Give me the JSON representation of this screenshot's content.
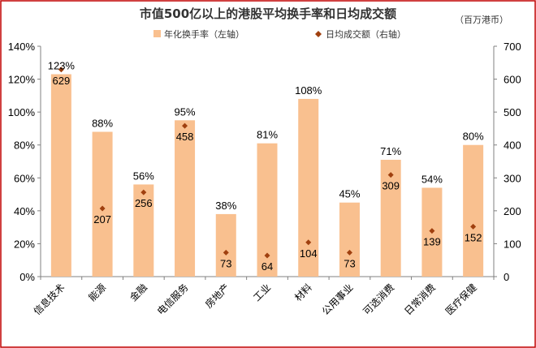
{
  "header": {
    "title": "市值500亿以上的港股平均换手率和日均成交额",
    "unit": "（百万港币）"
  },
  "legend": {
    "bar_label": "年化换手率（左轴）",
    "dot_label": "日均成交额（右轴）"
  },
  "colors": {
    "bar": "#F9C08F",
    "dot": "#A0400F",
    "frame": "#C00000",
    "axis": "#808080"
  },
  "chart_data": {
    "type": "bar",
    "title": "市值500亿以上的港股平均换手率和日均成交额",
    "categories": [
      "信息技术",
      "能源",
      "金融",
      "电信服务",
      "房地产",
      "工业",
      "材料",
      "公用事业",
      "可选消费",
      "日常消费",
      "医疗保健"
    ],
    "series": [
      {
        "name": "年化换手率（左轴）",
        "axis": "left",
        "type": "bar",
        "values": [
          123,
          88,
          56,
          95,
          38,
          81,
          108,
          45,
          71,
          54,
          80
        ],
        "labels": [
          "123%",
          "88%",
          "56%",
          "95%",
          "38%",
          "81%",
          "108%",
          "45%",
          "71%",
          "54%",
          "80%"
        ]
      },
      {
        "name": "日均成交额（右轴）",
        "axis": "right",
        "type": "scatter",
        "values": [
          629,
          207,
          256,
          458,
          73,
          64,
          104,
          73,
          309,
          139,
          152
        ],
        "labels": [
          "629",
          "207",
          "256",
          "458",
          "73",
          "64",
          "104",
          "73",
          "309",
          "139",
          "152"
        ]
      }
    ],
    "ylim_left": [
      0,
      140
    ],
    "ylim_right": [
      0,
      700
    ],
    "yticks_left": [
      "0%",
      "20%",
      "40%",
      "60%",
      "80%",
      "100%",
      "120%",
      "140%"
    ],
    "yticks_right": [
      "0",
      "100",
      "200",
      "300",
      "400",
      "500",
      "600",
      "700"
    ],
    "grid": false,
    "legend_position": "top-center"
  }
}
